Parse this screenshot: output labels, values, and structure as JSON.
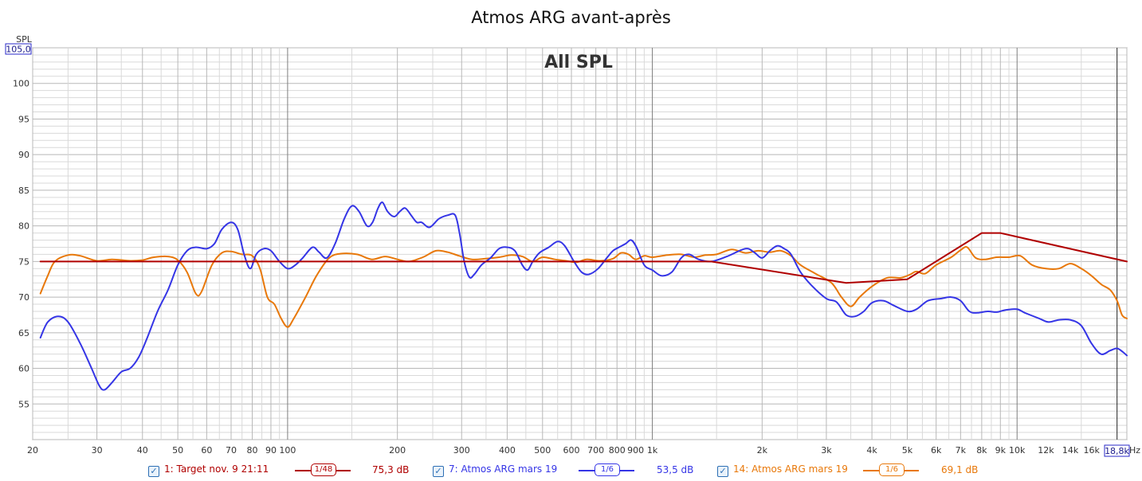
{
  "window": {
    "title": "Atmos ARG avant-après"
  },
  "chart_data": {
    "type": "line",
    "title": "Atmos ARG avant-après",
    "annotation": "All SPL",
    "ylabel": "SPL",
    "xunit": "Hz",
    "xscale": "log",
    "xlim": [
      20,
      20000
    ],
    "ylim": [
      50,
      105
    ],
    "grid": true,
    "legend_placement": "bottom",
    "cursor": {
      "y_value": "105,0",
      "x_value": "18,8k"
    },
    "yticks": [
      55,
      60,
      65,
      70,
      75,
      80,
      85,
      90,
      95,
      100
    ],
    "xticks": [
      {
        "v": 20,
        "label": "20"
      },
      {
        "v": 30,
        "label": "30"
      },
      {
        "v": 40,
        "label": "40"
      },
      {
        "v": 50,
        "label": "50"
      },
      {
        "v": 60,
        "label": "60"
      },
      {
        "v": 70,
        "label": "70"
      },
      {
        "v": 80,
        "label": "80"
      },
      {
        "v": 90,
        "label": "90"
      },
      {
        "v": 100,
        "label": "100"
      },
      {
        "v": 200,
        "label": "200"
      },
      {
        "v": 300,
        "label": "300"
      },
      {
        "v": 400,
        "label": "400"
      },
      {
        "v": 500,
        "label": "500"
      },
      {
        "v": 600,
        "label": "600"
      },
      {
        "v": 700,
        "label": "700"
      },
      {
        "v": 800,
        "label": "800"
      },
      {
        "v": 900,
        "label": "900"
      },
      {
        "v": 1000,
        "label": "1k"
      },
      {
        "v": 2000,
        "label": "2k"
      },
      {
        "v": 3000,
        "label": "3k"
      },
      {
        "v": 4000,
        "label": "4k"
      },
      {
        "v": 5000,
        "label": "5k"
      },
      {
        "v": 6000,
        "label": "6k"
      },
      {
        "v": 7000,
        "label": "7k"
      },
      {
        "v": 8000,
        "label": "8k"
      },
      {
        "v": 9000,
        "label": "9k"
      },
      {
        "v": 10000,
        "label": "10k"
      },
      {
        "v": 12000,
        "label": "12k"
      },
      {
        "v": 14000,
        "label": "14k"
      },
      {
        "v": 16000,
        "label": "16k"
      }
    ],
    "series": [
      {
        "name": "1: Target nov. 9 21:11",
        "color": "#b00000",
        "smoothing": "1/48",
        "level": "75,3 dB",
        "smooth": false,
        "points": [
          [
            21,
            75
          ],
          [
            1450,
            75
          ],
          [
            3400,
            72
          ],
          [
            5000,
            72.5
          ],
          [
            8000,
            79
          ],
          [
            9000,
            79
          ],
          [
            20000,
            75
          ]
        ]
      },
      {
        "name": "7: Atmos ARG mars 19",
        "color": "#3535e6",
        "smoothing": "1/6",
        "level": "53,5 dB",
        "smooth": true,
        "points": [
          [
            21,
            64.3
          ],
          [
            22,
            66.5
          ],
          [
            23.5,
            67.3
          ],
          [
            25,
            66.5
          ],
          [
            27,
            63.5
          ],
          [
            29,
            60
          ],
          [
            30.5,
            57.5
          ],
          [
            31.5,
            57
          ],
          [
            33,
            58
          ],
          [
            35,
            59.5
          ],
          [
            37,
            60
          ],
          [
            39,
            61.5
          ],
          [
            41,
            64
          ],
          [
            44,
            68
          ],
          [
            47,
            71
          ],
          [
            50,
            74.5
          ],
          [
            53,
            76.5
          ],
          [
            56,
            77
          ],
          [
            60,
            76.8
          ],
          [
            63,
            77.5
          ],
          [
            66,
            79.5
          ],
          [
            70,
            80.5
          ],
          [
            73,
            79.5
          ],
          [
            76,
            76
          ],
          [
            79,
            74
          ],
          [
            82,
            76
          ],
          [
            86,
            76.8
          ],
          [
            90,
            76.5
          ],
          [
            95,
            75
          ],
          [
            100,
            74
          ],
          [
            105,
            74.5
          ],
          [
            110,
            75.5
          ],
          [
            117,
            77
          ],
          [
            122,
            76.3
          ],
          [
            128,
            75.5
          ],
          [
            135,
            77.5
          ],
          [
            143,
            81
          ],
          [
            150,
            82.8
          ],
          [
            157,
            82
          ],
          [
            165,
            80
          ],
          [
            171,
            80.5
          ],
          [
            177,
            82.5
          ],
          [
            182,
            83.3
          ],
          [
            188,
            82
          ],
          [
            196,
            81.3
          ],
          [
            203,
            82
          ],
          [
            210,
            82.5
          ],
          [
            218,
            81.5
          ],
          [
            226,
            80.5
          ],
          [
            233,
            80.5
          ],
          [
            245,
            79.8
          ],
          [
            260,
            81
          ],
          [
            275,
            81.5
          ],
          [
            288,
            81.5
          ],
          [
            296,
            79
          ],
          [
            305,
            75
          ],
          [
            315,
            72.8
          ],
          [
            325,
            73.2
          ],
          [
            340,
            74.5
          ],
          [
            360,
            75.5
          ],
          [
            380,
            76.8
          ],
          [
            400,
            77
          ],
          [
            420,
            76.5
          ],
          [
            440,
            74.5
          ],
          [
            455,
            73.8
          ],
          [
            470,
            75
          ],
          [
            490,
            76.2
          ],
          [
            520,
            77
          ],
          [
            550,
            77.8
          ],
          [
            575,
            77.2
          ],
          [
            610,
            75
          ],
          [
            640,
            73.5
          ],
          [
            670,
            73.2
          ],
          [
            710,
            74
          ],
          [
            750,
            75.5
          ],
          [
            780,
            76.5
          ],
          [
            810,
            77
          ],
          [
            845,
            77.5
          ],
          [
            875,
            78
          ],
          [
            905,
            77
          ],
          [
            950,
            74.5
          ],
          [
            1000,
            73.8
          ],
          [
            1060,
            73
          ],
          [
            1130,
            73.5
          ],
          [
            1200,
            75.5
          ],
          [
            1260,
            76
          ],
          [
            1340,
            75.3
          ],
          [
            1450,
            75
          ],
          [
            1600,
            75.7
          ],
          [
            1800,
            76.8
          ],
          [
            1900,
            76.3
          ],
          [
            2000,
            75.5
          ],
          [
            2100,
            76.5
          ],
          [
            2200,
            77.2
          ],
          [
            2300,
            76.8
          ],
          [
            2400,
            76
          ],
          [
            2550,
            73.5
          ],
          [
            2750,
            71.5
          ],
          [
            3000,
            69.8
          ],
          [
            3200,
            69.3
          ],
          [
            3400,
            67.5
          ],
          [
            3600,
            67.3
          ],
          [
            3800,
            68
          ],
          [
            4000,
            69.2
          ],
          [
            4300,
            69.5
          ],
          [
            4600,
            68.8
          ],
          [
            5000,
            68
          ],
          [
            5300,
            68.3
          ],
          [
            5700,
            69.5
          ],
          [
            6200,
            69.8
          ],
          [
            6600,
            70
          ],
          [
            7000,
            69.5
          ],
          [
            7400,
            68
          ],
          [
            7800,
            67.8
          ],
          [
            8300,
            68
          ],
          [
            8800,
            67.9
          ],
          [
            9300,
            68.2
          ],
          [
            10000,
            68.3
          ],
          [
            10500,
            67.8
          ],
          [
            11500,
            67
          ],
          [
            12200,
            66.5
          ],
          [
            13000,
            66.8
          ],
          [
            14000,
            66.8
          ],
          [
            15000,
            66
          ],
          [
            16000,
            63.5
          ],
          [
            17000,
            62
          ],
          [
            18000,
            62.5
          ],
          [
            18800,
            62.8
          ],
          [
            19500,
            62.3
          ],
          [
            20000,
            61.8
          ]
        ]
      },
      {
        "name": "14: Atmos ARG mars 19",
        "color": "#e8780a",
        "smoothing": "1/6",
        "level": "69,1 dB",
        "smooth": true,
        "points": [
          [
            21,
            70.5
          ],
          [
            22,
            73
          ],
          [
            23,
            75
          ],
          [
            25,
            75.9
          ],
          [
            27,
            75.8
          ],
          [
            30,
            75.1
          ],
          [
            33,
            75.3
          ],
          [
            37,
            75.1
          ],
          [
            40,
            75.2
          ],
          [
            43,
            75.6
          ],
          [
            47,
            75.7
          ],
          [
            50,
            75.2
          ],
          [
            53,
            73.5
          ],
          [
            56,
            70.5
          ],
          [
            58,
            70.7
          ],
          [
            62,
            74.5
          ],
          [
            66,
            76.2
          ],
          [
            70,
            76.4
          ],
          [
            75,
            76
          ],
          [
            80,
            75.8
          ],
          [
            84,
            74
          ],
          [
            88,
            70
          ],
          [
            92,
            69
          ],
          [
            96,
            67
          ],
          [
            100,
            65.8
          ],
          [
            104,
            67
          ],
          [
            112,
            70
          ],
          [
            120,
            73
          ],
          [
            130,
            75.5
          ],
          [
            140,
            76.1
          ],
          [
            155,
            76
          ],
          [
            170,
            75.3
          ],
          [
            185,
            75.7
          ],
          [
            200,
            75.3
          ],
          [
            215,
            75
          ],
          [
            235,
            75.6
          ],
          [
            255,
            76.5
          ],
          [
            275,
            76.3
          ],
          [
            295,
            75.8
          ],
          [
            320,
            75.3
          ],
          [
            350,
            75.4
          ],
          [
            380,
            75.6
          ],
          [
            410,
            75.9
          ],
          [
            440,
            75.7
          ],
          [
            470,
            75
          ],
          [
            500,
            75.6
          ],
          [
            540,
            75.3
          ],
          [
            580,
            75.1
          ],
          [
            620,
            74.9
          ],
          [
            660,
            75.3
          ],
          [
            720,
            75.1
          ],
          [
            780,
            75.4
          ],
          [
            820,
            76.2
          ],
          [
            860,
            76
          ],
          [
            900,
            75.3
          ],
          [
            950,
            75.8
          ],
          [
            1000,
            75.6
          ],
          [
            1100,
            75.9
          ],
          [
            1200,
            76
          ],
          [
            1300,
            75.6
          ],
          [
            1400,
            75.9
          ],
          [
            1500,
            76
          ],
          [
            1650,
            76.7
          ],
          [
            1800,
            76.2
          ],
          [
            1950,
            76.5
          ],
          [
            2100,
            76.3
          ],
          [
            2250,
            76.5
          ],
          [
            2400,
            75.8
          ],
          [
            2550,
            74.5
          ],
          [
            2800,
            73.3
          ],
          [
            3100,
            72
          ],
          [
            3300,
            70
          ],
          [
            3500,
            68.7
          ],
          [
            3700,
            70
          ],
          [
            4000,
            71.5
          ],
          [
            4400,
            72.7
          ],
          [
            4800,
            72.7
          ],
          [
            5100,
            73.2
          ],
          [
            5300,
            73.6
          ],
          [
            5600,
            73.3
          ],
          [
            6000,
            74.5
          ],
          [
            6600,
            75.6
          ],
          [
            7000,
            76.6
          ],
          [
            7300,
            77
          ],
          [
            7700,
            75.5
          ],
          [
            8200,
            75.3
          ],
          [
            8800,
            75.6
          ],
          [
            9500,
            75.6
          ],
          [
            10200,
            75.8
          ],
          [
            11000,
            74.5
          ],
          [
            12000,
            74
          ],
          [
            13000,
            74
          ],
          [
            14000,
            74.7
          ],
          [
            15000,
            74
          ],
          [
            16000,
            73
          ],
          [
            17000,
            71.8
          ],
          [
            18000,
            71
          ],
          [
            18800,
            69.5
          ],
          [
            19400,
            67.5
          ],
          [
            20000,
            67
          ]
        ]
      }
    ]
  }
}
